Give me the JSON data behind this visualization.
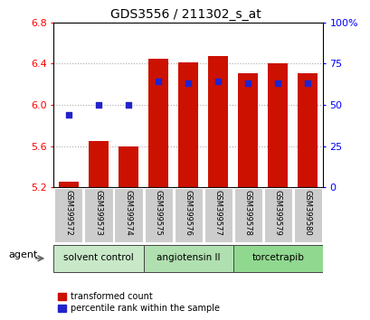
{
  "title": "GDS3556 / 211302_s_at",
  "samples": [
    "GSM399572",
    "GSM399573",
    "GSM399574",
    "GSM399575",
    "GSM399576",
    "GSM399577",
    "GSM399578",
    "GSM399579",
    "GSM399580"
  ],
  "transformed_count": [
    5.25,
    5.65,
    5.6,
    6.45,
    6.41,
    6.47,
    6.31,
    6.4,
    6.31
  ],
  "percentile_rank": [
    44,
    50,
    50,
    64,
    63,
    64,
    63,
    63,
    63
  ],
  "ylim_left": [
    5.2,
    6.8
  ],
  "ylim_right": [
    0,
    100
  ],
  "yticks_left": [
    5.2,
    5.6,
    6.0,
    6.4,
    6.8
  ],
  "yticks_right": [
    0,
    25,
    50,
    75,
    100
  ],
  "ytick_labels_right": [
    "0",
    "25",
    "50",
    "75",
    "100%"
  ],
  "groups": [
    {
      "label": "solvent control",
      "indices": [
        0,
        1,
        2
      ]
    },
    {
      "label": "angiotensin II",
      "indices": [
        3,
        4,
        5
      ]
    },
    {
      "label": "torcetrapib",
      "indices": [
        6,
        7,
        8
      ]
    }
  ],
  "group_colors": [
    "#c8e8c8",
    "#b0e0b0",
    "#90d890"
  ],
  "bar_color": "#cc1100",
  "dot_color": "#2222cc",
  "bar_bottom": 5.2,
  "bar_width": 0.65,
  "legend_red_label": "transformed count",
  "legend_blue_label": "percentile rank within the sample",
  "agent_label": "agent",
  "sample_box_color": "#cccccc",
  "fig_width": 4.1,
  "fig_height": 3.54,
  "dpi": 100
}
